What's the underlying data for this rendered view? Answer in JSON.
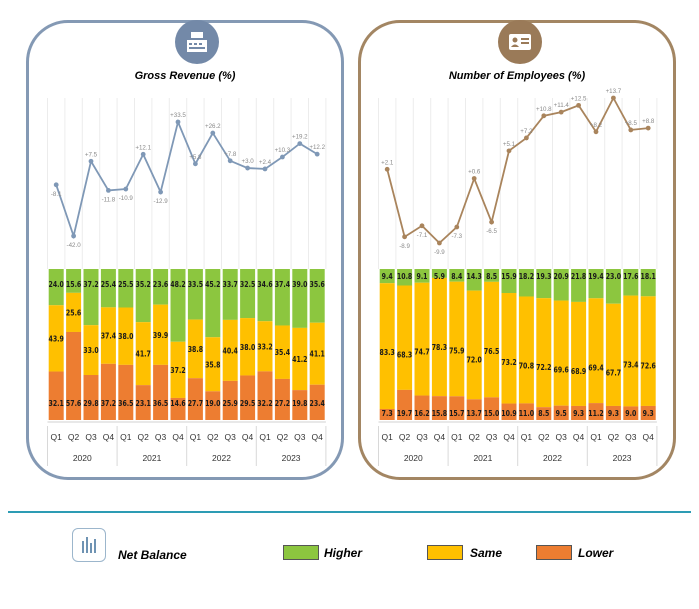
{
  "colors": {
    "higher": "#8cc63f",
    "same": "#ffc000",
    "lower": "#ed7d31",
    "revenue_line": "#7f98b6",
    "employees_line": "#a9845c",
    "higher_dark": "#4f9d2f"
  },
  "legend": {
    "title": "Net Balance",
    "higher": "Higher",
    "same": "Same",
    "lower": "Lower"
  },
  "quarters": [
    "Q1",
    "Q2",
    "Q3",
    "Q4",
    "Q1",
    "Q2",
    "Q3",
    "Q4",
    "Q1",
    "Q2",
    "Q3",
    "Q4",
    "Q1",
    "Q2",
    "Q3",
    "Q4"
  ],
  "years": [
    "2020",
    "2021",
    "2022",
    "2023"
  ],
  "chart_data": [
    {
      "type": "bar",
      "title": "Gross Revenue (%)",
      "icon": "cash-register-icon",
      "net_balance_labels": [
        "-8.1",
        "-42.0",
        "+7.5",
        "-11.8",
        "-10.9",
        "+12.1",
        "-12.9",
        "+33.5",
        "+5.8",
        "+26.2",
        "+7.8",
        "+3.0",
        "+2.4",
        "+10.3",
        "+19.2",
        "+12.2"
      ],
      "net_balance": [
        -8.1,
        -42.0,
        7.5,
        -11.8,
        -10.9,
        12.1,
        -12.9,
        33.5,
        5.8,
        26.2,
        7.8,
        3.0,
        2.4,
        10.3,
        19.2,
        12.2
      ],
      "series": [
        {
          "name": "Higher",
          "values": [
            24.0,
            15.6,
            37.2,
            25.4,
            25.5,
            35.2,
            23.6,
            48.2,
            33.5,
            45.2,
            33.7,
            32.5,
            34.6,
            37.4,
            39.0,
            35.6
          ]
        },
        {
          "name": "Same",
          "values": [
            43.9,
            25.6,
            33.0,
            37.4,
            38.0,
            41.7,
            39.9,
            37.2,
            38.8,
            35.8,
            40.4,
            38.0,
            33.2,
            35.4,
            41.2,
            41.1
          ]
        },
        {
          "name": "Lower",
          "values": [
            32.1,
            57.6,
            29.8,
            37.2,
            36.5,
            23.1,
            36.5,
            14.6,
            27.7,
            19.0,
            25.9,
            29.5,
            32.2,
            27.2,
            19.8,
            23.4
          ]
        }
      ]
    },
    {
      "type": "bar",
      "title": "Number of Employees (%)",
      "icon": "id-card-icon",
      "net_balance_labels": [
        "+2.1",
        "-8.9",
        "-7.1",
        "-9.9",
        "-7.3",
        "+0.6",
        "-6.5",
        "+5.1",
        "+7.2",
        "+10.8",
        "+11.4",
        "+12.5",
        "+8.2",
        "+13.7",
        "+8.5",
        "+8.8"
      ],
      "net_balance": [
        2.1,
        -8.9,
        -7.1,
        -9.9,
        -7.3,
        0.6,
        -6.5,
        5.1,
        7.2,
        10.8,
        11.4,
        12.5,
        8.2,
        13.7,
        8.5,
        8.8
      ],
      "series": [
        {
          "name": "Higher",
          "values": [
            9.4,
            10.8,
            9.1,
            5.9,
            8.4,
            14.3,
            8.5,
            15.9,
            18.2,
            19.3,
            20.9,
            21.8,
            19.4,
            23.0,
            17.6,
            18.1
          ]
        },
        {
          "name": "Same",
          "values": [
            83.3,
            68.3,
            74.7,
            78.3,
            75.9,
            72.0,
            76.5,
            73.2,
            70.8,
            72.2,
            69.6,
            68.9,
            69.4,
            67.7,
            73.4,
            72.6
          ]
        },
        {
          "name": "Lower",
          "values": [
            7.3,
            19.7,
            16.2,
            15.8,
            15.7,
            13.7,
            15.0,
            10.9,
            11.0,
            8.5,
            9.5,
            9.3,
            11.2,
            9.3,
            9.0,
            9.3
          ]
        }
      ]
    }
  ]
}
